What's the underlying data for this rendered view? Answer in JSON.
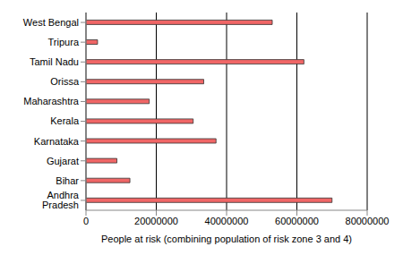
{
  "chart_data": {
    "type": "bar",
    "orientation": "horizontal",
    "xlabel": "People at risk (combining population of risk zone 3 and 4)",
    "categories": [
      "West Bengal",
      "Tripura",
      "Tamil Nadu",
      "Orissa",
      "Maharashtra",
      "Kerala",
      "Karnataka",
      "Gujarat",
      "Bihar",
      "Andhra Pradesh"
    ],
    "values": [
      53000000,
      3300000,
      62000000,
      33500000,
      18000000,
      30500000,
      37000000,
      8800000,
      12500000,
      70000000
    ],
    "color": "#f06666",
    "xlim": [
      0,
      80000000
    ],
    "xticks": [
      0,
      20000000,
      40000000,
      60000000,
      80000000
    ],
    "grid": true
  }
}
